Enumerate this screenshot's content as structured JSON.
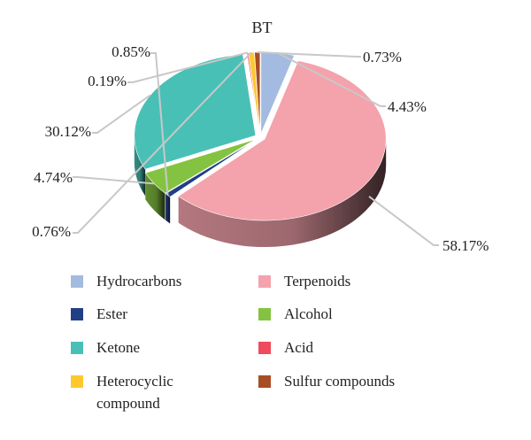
{
  "chart_data": {
    "type": "pie",
    "style": "3d-exploded",
    "title": "BT",
    "slices": [
      {
        "name": "Hydrocarbons",
        "value": 4.43,
        "label": "4.43%",
        "color": "#a3bbe0"
      },
      {
        "name": "Terpenoids",
        "value": 58.17,
        "label": "58.17%",
        "color": "#f4a2ac"
      },
      {
        "name": "Ester",
        "value": 0.85,
        "label": "0.85%",
        "color": "#223f86"
      },
      {
        "name": "Alcohol",
        "value": 4.74,
        "label": "4.74%",
        "color": "#84c341"
      },
      {
        "name": "Ketone",
        "value": 30.12,
        "label": "30.12%",
        "color": "#49c0b6"
      },
      {
        "name": "Acid",
        "value": 0.19,
        "label": "0.19%",
        "color": "#ee4b5c"
      },
      {
        "name": "Heterocyclic compound",
        "value": 0.76,
        "label": "0.76%",
        "color": "#ffc82c"
      },
      {
        "name": "Sulfur compounds",
        "value": 0.73,
        "label": "0.73%",
        "color": "#a84d24"
      }
    ],
    "legend": {
      "placement": "bottom",
      "columns": 2,
      "items": [
        {
          "name": "Hydrocarbons",
          "lines": [
            "Hydrocarbons"
          ],
          "color": "#a3bbe0"
        },
        {
          "name": "Terpenoids",
          "lines": [
            "Terpenoids"
          ],
          "color": "#f4a2ac"
        },
        {
          "name": "Ester",
          "lines": [
            "Ester"
          ],
          "color": "#223f86"
        },
        {
          "name": "Alcohol",
          "lines": [
            "Alcohol"
          ],
          "color": "#84c341"
        },
        {
          "name": "Ketone",
          "lines": [
            "Ketone"
          ],
          "color": "#49c0b6"
        },
        {
          "name": "Acid",
          "lines": [
            "Acid"
          ],
          "color": "#ee4b5c"
        },
        {
          "name": "Heterocyclic compound",
          "lines": [
            "Heterocyclic",
            "compound"
          ],
          "color": "#ffc82c"
        },
        {
          "name": "Sulfur compounds",
          "lines": [
            "Sulfur compounds"
          ],
          "color": "#a84d24"
        }
      ]
    }
  }
}
